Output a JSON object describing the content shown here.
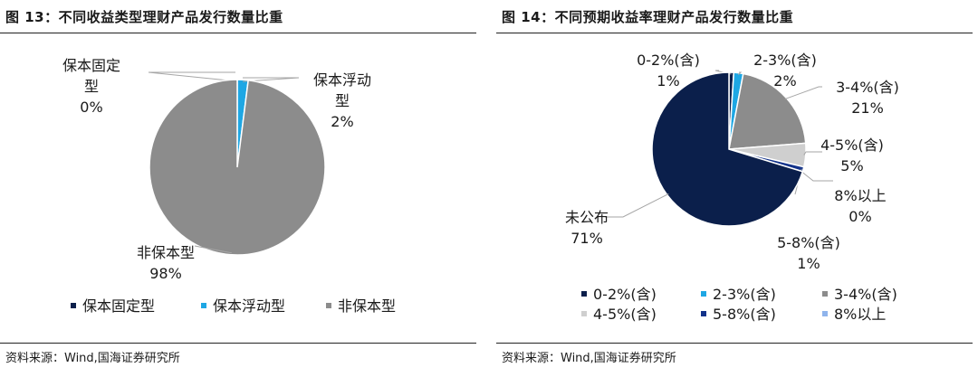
{
  "left": {
    "title": "图 13：不同收益类型理财产品发行数量比重",
    "source": "资料来源：Wind,国海证券研究所",
    "chart_data": {
      "type": "pie",
      "title": "图 13：不同收益类型理财产品发行数量比重",
      "legend_position": "bottom",
      "slices": [
        {
          "name": "保本固定型",
          "label_lines": [
            "保本固定",
            "型"
          ],
          "value": 0,
          "value_label": "0%",
          "color": "#0b1f4b"
        },
        {
          "name": "保本浮动型",
          "label_lines": [
            "保本浮动",
            "型"
          ],
          "value": 2,
          "value_label": "2%",
          "color": "#1ea7e4"
        },
        {
          "name": "非保本型",
          "label_lines": [
            "非保本型"
          ],
          "value": 98,
          "value_label": "98%",
          "color": "#8c8c8c"
        }
      ]
    }
  },
  "right": {
    "title": "图 14：不同预期收益率理财产品发行数量比重",
    "source": "资料来源：Wind,国海证券研究所",
    "chart_data": {
      "type": "pie",
      "title": "图 14：不同预期收益率理财产品发行数量比重",
      "legend_position": "bottom",
      "slices": [
        {
          "name": "0-2%(含)",
          "label_lines": [
            "0-2%(含)"
          ],
          "value": 1,
          "value_label": "1%",
          "color": "#0b1f4b"
        },
        {
          "name": "2-3%(含)",
          "label_lines": [
            "2-3%(含)"
          ],
          "value": 2,
          "value_label": "2%",
          "color": "#1ea7e4"
        },
        {
          "name": "3-4%(含)",
          "label_lines": [
            "3-4%(含)"
          ],
          "value": 21,
          "value_label": "21%",
          "color": "#8c8c8c"
        },
        {
          "name": "4-5%(含)",
          "label_lines": [
            "4-5%(含)"
          ],
          "value": 5,
          "value_label": "5%",
          "color": "#cfcfcf"
        },
        {
          "name": "5-8%(含)",
          "label_lines": [
            "5-8%(含)"
          ],
          "value": 1,
          "value_label": "1%",
          "color": "#12328a"
        },
        {
          "name": "8%以上",
          "label_lines": [
            "8%以上"
          ],
          "value": 0,
          "value_label": "0%",
          "color": "#8fb4ec"
        },
        {
          "name": "未公布",
          "label_lines": [
            "未公布"
          ],
          "value": 71,
          "value_label": "71%",
          "color": "#0b1f4b"
        }
      ],
      "legend_items": [
        "0-2%(含)",
        "2-3%(含)",
        "3-4%(含)",
        "4-5%(含)",
        "5-8%(含)",
        "8%以上"
      ]
    }
  }
}
